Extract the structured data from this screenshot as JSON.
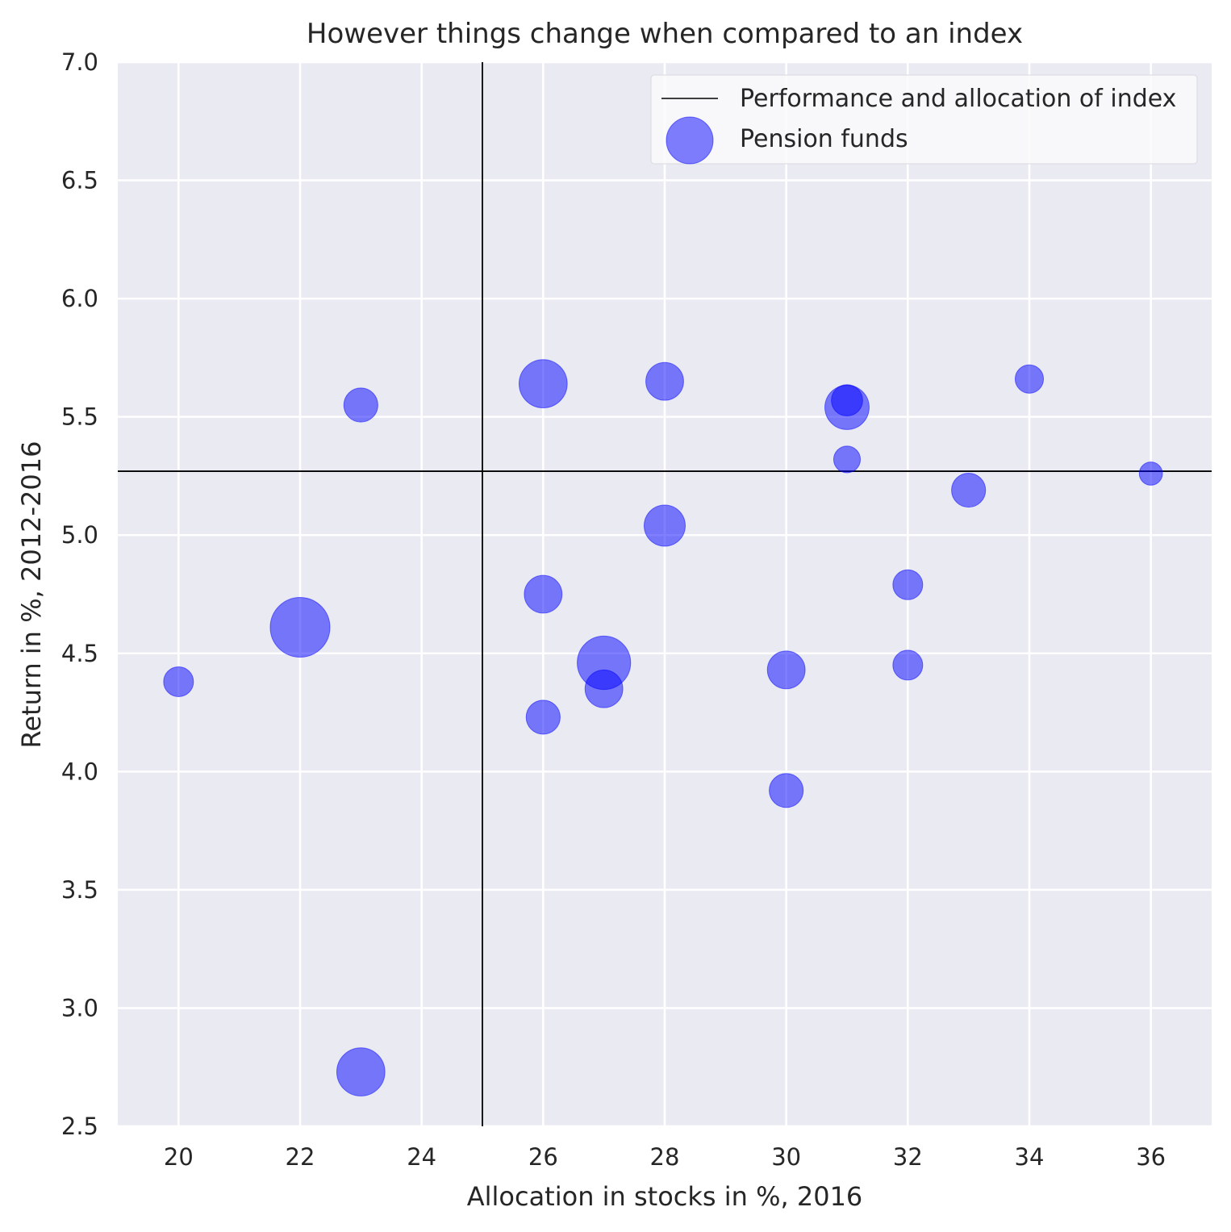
{
  "chart_data": {
    "type": "scatter",
    "title": "However things change when compared to an index",
    "xlabel": "Allocation in stocks in %, 2016",
    "ylabel": "Return in %, 2012-2016",
    "xlim": [
      19,
      37
    ],
    "ylim": [
      2.5,
      7.0
    ],
    "xticks": [
      "20",
      "22",
      "24",
      "26",
      "28",
      "30",
      "32",
      "34",
      "36"
    ],
    "yticks": [
      "2.5",
      "3.0",
      "3.5",
      "4.0",
      "4.5",
      "5.0",
      "5.5",
      "6.0",
      "6.5",
      "7.0"
    ],
    "grid": true,
    "legend_position": "top-right",
    "background_color": "#eaeaf2",
    "grid_color": "#ffffff",
    "point_color": "#0000ff",
    "point_opacity": 0.5,
    "index_line_color": "#000000",
    "reference_lines": {
      "name": "Performance and allocation of index",
      "x": 25,
      "y": 5.27
    },
    "series": [
      {
        "name": "Pension funds",
        "points": [
          {
            "x": 20,
            "y": 4.38,
            "size": 1
          },
          {
            "x": 22,
            "y": 4.61,
            "size": 4
          },
          {
            "x": 23,
            "y": 5.55,
            "size": 1.3
          },
          {
            "x": 23,
            "y": 2.73,
            "size": 2.6
          },
          {
            "x": 26,
            "y": 5.64,
            "size": 2.6
          },
          {
            "x": 26,
            "y": 4.75,
            "size": 1.6
          },
          {
            "x": 26,
            "y": 4.23,
            "size": 1.3
          },
          {
            "x": 27,
            "y": 4.46,
            "size": 3.2
          },
          {
            "x": 27,
            "y": 4.35,
            "size": 1.6
          },
          {
            "x": 28,
            "y": 5.65,
            "size": 1.6
          },
          {
            "x": 28,
            "y": 5.04,
            "size": 1.9
          },
          {
            "x": 30,
            "y": 4.43,
            "size": 1.6
          },
          {
            "x": 30,
            "y": 3.92,
            "size": 1.3
          },
          {
            "x": 31,
            "y": 5.57,
            "size": 1.1
          },
          {
            "x": 31,
            "y": 5.54,
            "size": 2.2
          },
          {
            "x": 31,
            "y": 5.32,
            "size": 0.8
          },
          {
            "x": 32,
            "y": 4.79,
            "size": 1.0
          },
          {
            "x": 32,
            "y": 4.45,
            "size": 1.0
          },
          {
            "x": 33,
            "y": 5.19,
            "size": 1.3
          },
          {
            "x": 34,
            "y": 5.66,
            "size": 0.9
          },
          {
            "x": 36,
            "y": 5.26,
            "size": 0.6
          }
        ]
      }
    ],
    "legend": [
      {
        "label": "Performance and allocation of index",
        "kind": "line"
      },
      {
        "label": "Pension funds",
        "kind": "marker"
      }
    ]
  }
}
